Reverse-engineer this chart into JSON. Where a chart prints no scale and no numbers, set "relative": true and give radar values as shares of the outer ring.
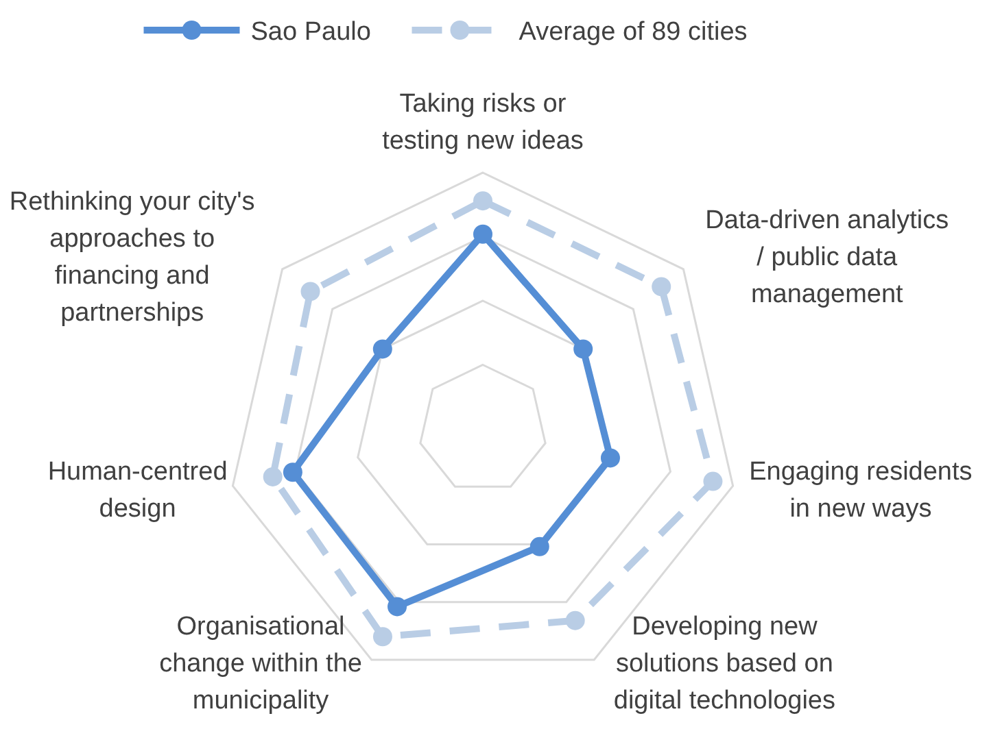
{
  "chart_data": {
    "type": "radar",
    "relative": true,
    "grid": true,
    "legend": "top",
    "marker": "circle",
    "categories": [
      "Taking risks or\ntesting new ideas",
      "Data-driven analytics\n/ public data\nmanagement",
      "Engaging residents\nin new ways",
      "Developing new\nsolutions based on\ndigital technologies",
      "Organisational\nchange within the\nmunicipality",
      "Human-centred\ndesign",
      "Rethinking your city's\napproaches to\nfinancing and\npartnerships"
    ],
    "series": [
      {
        "name": "Sao Paulo",
        "color": "#558ed5",
        "line_style": "solid",
        "values": [
          0.76,
          0.5,
          0.51,
          0.51,
          0.77,
          0.76,
          0.5
        ]
      },
      {
        "name": "Average of 89 cities",
        "color": "#b9cde5",
        "line_style": "dashed",
        "values": [
          0.89,
          0.89,
          0.92,
          0.83,
          0.9,
          0.84,
          0.86
        ]
      }
    ]
  }
}
